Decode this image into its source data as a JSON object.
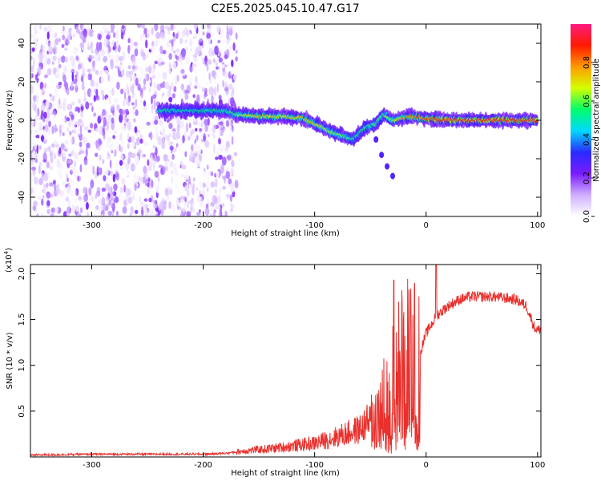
{
  "figure": {
    "title": "C2E5.2025.045.10.47.G17"
  },
  "chart_data": [
    {
      "type": "heatmap",
      "xlabel": "Height of straight line (km)",
      "ylabel": "Frequency (Hz)",
      "xlim": [
        -355,
        103
      ],
      "ylim": [
        -50,
        50
      ],
      "x_ticks": [
        -300,
        -200,
        -100,
        0,
        100
      ],
      "y_ticks": [
        -40,
        -20,
        0,
        20,
        40
      ],
      "grid": false,
      "features": {
        "noise_region_x": [
          -355,
          -170
        ],
        "noise_region_y": [
          -50,
          50
        ],
        "trace_points": [
          {
            "x": -240,
            "y": 5,
            "a": 0.55
          },
          {
            "x": -225,
            "y": 5,
            "a": 0.5
          },
          {
            "x": -180,
            "y": 5,
            "a": 0.55
          },
          {
            "x": -170,
            "y": 3,
            "a": 0.6
          },
          {
            "x": -150,
            "y": 2,
            "a": 0.75
          },
          {
            "x": -130,
            "y": 2,
            "a": 0.7
          },
          {
            "x": -110,
            "y": 1,
            "a": 0.75
          },
          {
            "x": -95,
            "y": -3,
            "a": 0.7
          },
          {
            "x": -85,
            "y": -6,
            "a": 0.65
          },
          {
            "x": -75,
            "y": -8,
            "a": 0.6
          },
          {
            "x": -65,
            "y": -10,
            "a": 0.55
          },
          {
            "x": -55,
            "y": -4,
            "a": 0.55
          },
          {
            "x": -45,
            "y": -2,
            "a": 0.6
          },
          {
            "x": -38,
            "y": 3,
            "a": 0.6
          },
          {
            "x": -30,
            "y": 0,
            "a": 0.65
          },
          {
            "x": -15,
            "y": 2,
            "a": 0.8
          },
          {
            "x": 0,
            "y": 1,
            "a": 0.85
          },
          {
            "x": 20,
            "y": 0,
            "a": 0.9
          },
          {
            "x": 50,
            "y": 0,
            "a": 0.9
          },
          {
            "x": 80,
            "y": 0,
            "a": 0.9
          },
          {
            "x": 100,
            "y": 0,
            "a": 0.9
          }
        ],
        "branch_points": [
          {
            "x": -45,
            "y": -10
          },
          {
            "x": -40,
            "y": -18
          },
          {
            "x": -35,
            "y": -24
          },
          {
            "x": -30,
            "y": -29
          }
        ]
      },
      "colorbar": {
        "label": "Normalized spectral amplitude",
        "range": [
          0.0,
          1.0
        ],
        "ticks": [
          "0.0",
          "0.2",
          "0.4",
          "0.6",
          "0.8"
        ],
        "colors": [
          "#ffffff",
          "#d0b0ff",
          "#7a1cff",
          "#2a2aff",
          "#00d8ff",
          "#00ff6a",
          "#d4ff00",
          "#ff9a00",
          "#ff1a00",
          "#ff1a80"
        ]
      }
    },
    {
      "type": "line",
      "xlabel": "Height of straight line (km)",
      "ylabel": "SNR (10 * v/v)",
      "scale_label": "(x10",
      "scale_exponent": "4",
      "scale_close": ")",
      "xlim": [
        -355,
        103
      ],
      "ylim": [
        0.0,
        2.1
      ],
      "x_ticks": [
        -300,
        -200,
        -100,
        0,
        100
      ],
      "y_ticks": [
        "0.5",
        "1.0",
        "1.5",
        "2.0"
      ],
      "grid": false,
      "series": [
        {
          "color": "#e8302c",
          "x": [
            -355,
            -300,
            -250,
            -200,
            -180,
            -160,
            -140,
            -120,
            -100,
            -80,
            -60,
            -45,
            -35,
            -28,
            -22,
            -15,
            -10,
            -5,
            0,
            10,
            20,
            30,
            40,
            60,
            80,
            90,
            97,
            100,
            103
          ],
          "y": [
            0.02,
            0.03,
            0.03,
            0.03,
            0.04,
            0.07,
            0.09,
            0.12,
            0.15,
            0.22,
            0.3,
            0.45,
            0.65,
            0.85,
            1.05,
            1.1,
            1.05,
            1.15,
            1.35,
            1.55,
            1.65,
            1.72,
            1.75,
            1.75,
            1.72,
            1.65,
            1.42,
            1.38,
            1.4
          ]
        }
      ],
      "peaks": [
        {
          "x": -29,
          "y": 1.93
        },
        {
          "x": 9,
          "y": 2.1
        }
      ]
    }
  ]
}
